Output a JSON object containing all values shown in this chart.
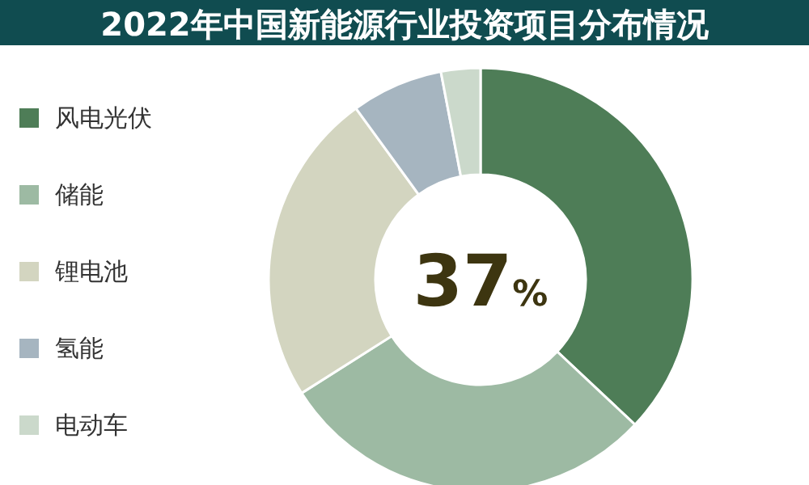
{
  "chart_data": {
    "type": "donut",
    "title": "2022年中国新能源行业投资项目分布情况",
    "categories": [
      "风电光伏",
      "储能",
      "锂电池",
      "氢能",
      "电动车"
    ],
    "values": [
      37,
      29,
      24,
      7,
      3
    ],
    "colors": [
      "#4e7d57",
      "#9dbaa3",
      "#d3d5c0",
      "#a6b5c0",
      "#cbd9cb"
    ],
    "legend": "left",
    "annotations": [
      "37%"
    ]
  }
}
